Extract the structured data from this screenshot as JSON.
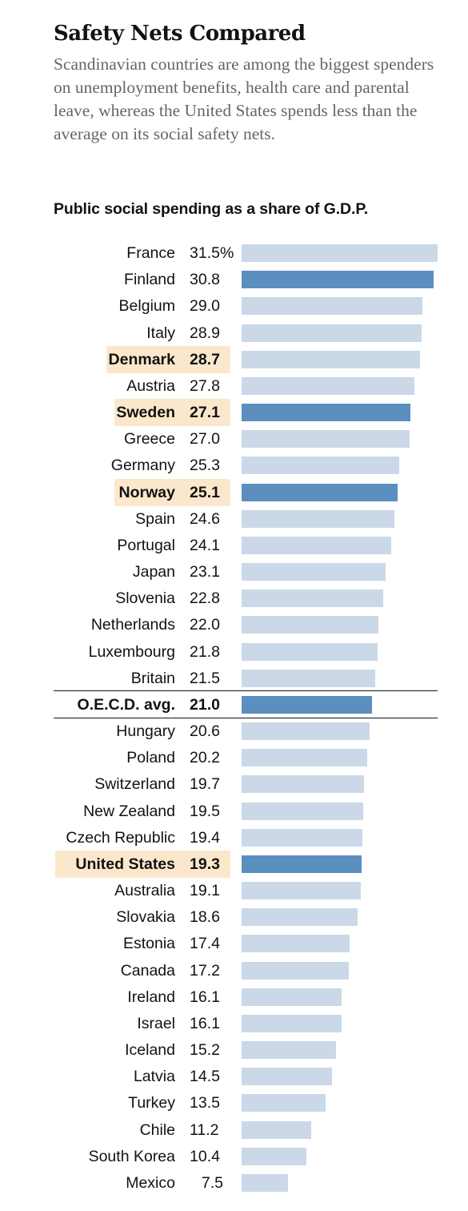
{
  "header": {
    "title": "Safety Nets Compared",
    "subtitle": "Scandinavian countries are among the biggest spenders on unemployment benefits, health care and parental leave, whereas the United States spends less than the average on its social safety nets."
  },
  "colors": {
    "bar_default": "#cbd8e8",
    "bar_highlight": "#5b8fbf",
    "row_highlight_bg": "#fbe8cc",
    "title_text": "#121212",
    "subtitle_text": "#666666"
  },
  "chart_data": {
    "type": "bar",
    "orientation": "horizontal",
    "title": "Public social spending as a share of G.D.P.",
    "unit": "%",
    "xlim": [
      0,
      31.5
    ],
    "grid": false,
    "legend": "none",
    "categories": [
      "France",
      "Finland",
      "Belgium",
      "Italy",
      "Denmark",
      "Austria",
      "Sweden",
      "Greece",
      "Germany",
      "Norway",
      "Spain",
      "Portugal",
      "Japan",
      "Slovenia",
      "Netherlands",
      "Luxembourg",
      "Britain",
      "O.E.C.D. avg.",
      "Hungary",
      "Poland",
      "Switzerland",
      "New Zealand",
      "Czech Republic",
      "United States",
      "Australia",
      "Slovakia",
      "Estonia",
      "Canada",
      "Ireland",
      "Israel",
      "Iceland",
      "Latvia",
      "Turkey",
      "Chile",
      "South Korea",
      "Mexico"
    ],
    "values": [
      31.5,
      30.8,
      29.0,
      28.9,
      28.7,
      27.8,
      27.1,
      27.0,
      25.3,
      25.1,
      24.6,
      24.1,
      23.1,
      22.8,
      22.0,
      21.8,
      21.5,
      21.0,
      20.6,
      20.2,
      19.7,
      19.5,
      19.4,
      19.3,
      19.1,
      18.6,
      17.4,
      17.2,
      16.1,
      16.1,
      15.2,
      14.5,
      13.5,
      11.2,
      10.4,
      7.5
    ],
    "value_labels": [
      "31.5%",
      "30.8",
      "29.0",
      "28.9",
      "28.7",
      "27.8",
      "27.1",
      "27.0",
      "25.3",
      "25.1",
      "24.6",
      "24.1",
      "23.1",
      "22.8",
      "22.0",
      "21.8",
      "21.5",
      "21.0",
      "20.6",
      "20.2",
      "19.7",
      "19.5",
      "19.4",
      "19.3",
      "19.1",
      "18.6",
      "17.4",
      "17.2",
      "16.1",
      "16.1",
      "15.2",
      "14.5",
      "13.5",
      "11.2",
      "10.4",
      "7.5"
    ],
    "dark_bars": [
      "Finland",
      "Sweden",
      "Norway",
      "O.E.C.D. avg.",
      "United States"
    ],
    "bold_rows": [
      "Denmark",
      "Sweden",
      "Norway",
      "O.E.C.D. avg.",
      "United States"
    ],
    "highlighted_rows": [
      "Denmark",
      "Sweden",
      "Norway",
      "United States"
    ],
    "ruled_rows": [
      "O.E.C.D. avg."
    ]
  }
}
